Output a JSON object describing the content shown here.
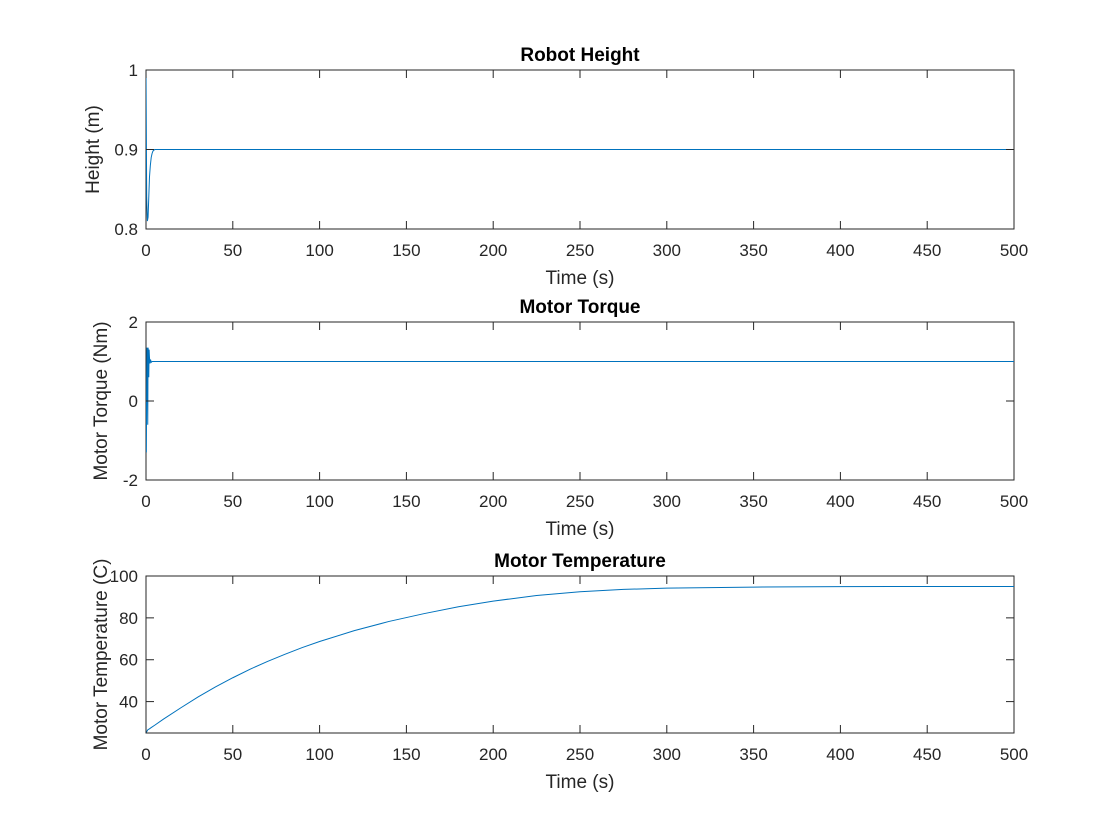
{
  "line_color": "#0072bd",
  "axes_color": "#262626",
  "chart_data": [
    {
      "type": "line",
      "title": "Robot Height",
      "xlabel": "Time (s)",
      "ylabel": "Height (m)",
      "xlim": [
        0,
        500
      ],
      "ylim": [
        0.8,
        1.0
      ],
      "xticks": [
        0,
        50,
        100,
        150,
        200,
        250,
        300,
        350,
        400,
        450,
        500
      ],
      "yticks": [
        0.8,
        0.9,
        1.0
      ],
      "ytick_labels": [
        "0.8",
        "0.9",
        "1"
      ],
      "grid": false,
      "series": [
        {
          "x": [
            0,
            0.4,
            0.8,
            1.2,
            1.6,
            2.0,
            2.5,
            3.0,
            3.5,
            4.0,
            5.0,
            6.0,
            8.0,
            10,
            20,
            50,
            100,
            200,
            300,
            400,
            500
          ],
          "y": [
            1.0,
            0.84,
            0.81,
            0.815,
            0.84,
            0.865,
            0.88,
            0.89,
            0.895,
            0.898,
            0.9,
            0.9,
            0.9,
            0.9,
            0.9,
            0.9,
            0.9,
            0.9,
            0.9,
            0.9,
            0.9
          ]
        }
      ]
    },
    {
      "type": "line",
      "title": "Motor Torque",
      "xlabel": "Time (s)",
      "ylabel": "Motor Torque (Nm)",
      "xlim": [
        0,
        500
      ],
      "ylim": [
        -2,
        2
      ],
      "xticks": [
        0,
        50,
        100,
        150,
        200,
        250,
        300,
        350,
        400,
        450,
        500
      ],
      "yticks": [
        -2,
        0,
        2
      ],
      "ytick_labels": [
        "-2",
        "0",
        "2"
      ],
      "grid": false,
      "series": [
        {
          "x": [
            0,
            0.2,
            0.4,
            0.6,
            0.8,
            1.0,
            1.2,
            1.4,
            1.6,
            1.8,
            2.0,
            2.3,
            2.6,
            3.0,
            3.5,
            4.0,
            5.0,
            10,
            50,
            100,
            200,
            300,
            400,
            500
          ],
          "y": [
            0,
            -1.3,
            0.4,
            1.35,
            1.2,
            -0.6,
            1.35,
            1.25,
            0.6,
            1.3,
            1.1,
            0.95,
            1.05,
            0.98,
            1.0,
            1.0,
            1.0,
            1.0,
            1.0,
            1.0,
            1.0,
            1.0,
            1.0,
            1.0
          ]
        }
      ]
    },
    {
      "type": "line",
      "title": "Motor Temperature",
      "xlabel": "Time (s)",
      "ylabel": "Motor Temperature (C)",
      "xlim": [
        0,
        500
      ],
      "ylim": [
        25,
        100
      ],
      "xticks": [
        0,
        50,
        100,
        150,
        200,
        250,
        300,
        350,
        400,
        450,
        500
      ],
      "yticks": [
        40,
        60,
        80,
        100
      ],
      "ytick_labels": [
        "40",
        "60",
        "80",
        "100"
      ],
      "grid": false,
      "series": [
        {
          "x": [
            0,
            1,
            2,
            3,
            5,
            10,
            20,
            30,
            40,
            50,
            60,
            70,
            80,
            90,
            100,
            120,
            140,
            160,
            180,
            200,
            225,
            250,
            275,
            300,
            350,
            400,
            450,
            500
          ],
          "y": [
            25,
            26.5,
            27.0,
            27.6,
            28.7,
            31.6,
            37.0,
            42.2,
            47.0,
            51.4,
            55.5,
            59.2,
            62.6,
            65.8,
            68.7,
            73.9,
            78.3,
            82.0,
            85.3,
            88.0,
            90.7,
            92.5,
            93.6,
            94.2,
            94.7,
            94.9,
            95.0,
            95.0
          ]
        }
      ]
    }
  ]
}
